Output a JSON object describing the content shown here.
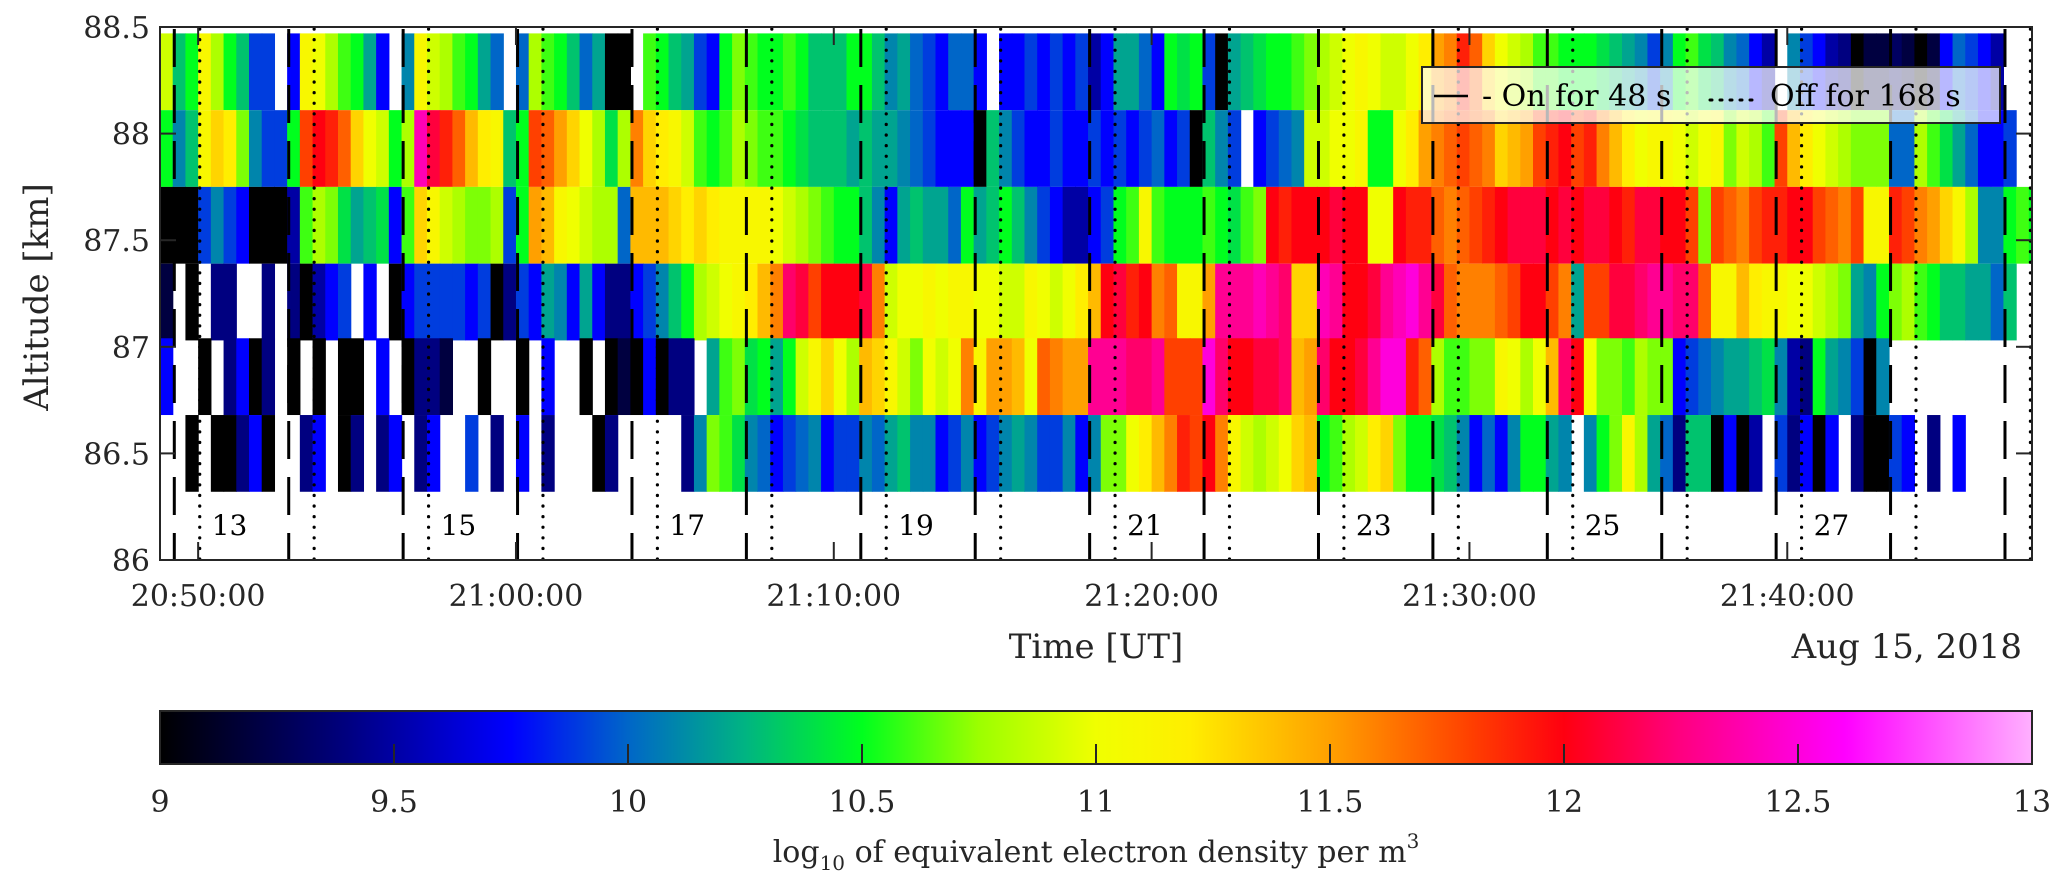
{
  "chart_data": {
    "type": "heatmap",
    "ylabel": "Altitude [km]",
    "xlabel": "Time [UT]",
    "date_label": "Aug 15, 2018",
    "ylim": [
      86,
      88.5
    ],
    "y_ticks": [
      86,
      86.5,
      87,
      87.5,
      88,
      88.5
    ],
    "y_tick_labels": [
      "86",
      "86.5",
      "87",
      "87.5",
      "88",
      "88.5"
    ],
    "x_range_minutes_after_2050": [
      -1.2,
      57.7
    ],
    "x_ticks_minutes_after_2050": [
      0,
      10,
      20,
      30,
      40,
      50
    ],
    "x_tick_labels": [
      "20:50:00",
      "21:00:00",
      "21:10:00",
      "21:20:00",
      "21:30:00",
      "21:40:00"
    ],
    "bin_seconds": 24,
    "data_start_minutes_after_2050": -1.2,
    "row_altitudes_km": [
      88.29,
      87.93,
      87.57,
      87.21,
      86.86,
      86.5
    ],
    "row_half_height_km": 0.18,
    "cycle_period_seconds": 216,
    "on_seconds": 48,
    "off_seconds": 168,
    "first_on_minutes_after_2050": -0.75,
    "cycle_count": 17,
    "cycle_labels": [
      "13",
      "15",
      "17",
      "19",
      "21",
      "23",
      "25",
      "27"
    ],
    "cycle_label_cycle_index": [
      0,
      2,
      4,
      6,
      8,
      10,
      12,
      14
    ],
    "legend": {
      "on_label": "- On for 48 s",
      "off_label": "Off for 168 s",
      "position": "top-right"
    },
    "colorbar": {
      "label_prefix": "log",
      "label_sub": "10",
      "label_main": " of equivalent electron density per m",
      "label_sup": "3",
      "range": [
        9,
        13
      ],
      "ticks": [
        9,
        9.5,
        10,
        10.5,
        11,
        11.5,
        12,
        12.5,
        13
      ],
      "tick_labels": [
        "9",
        "9.5",
        "10",
        "10.5",
        "11",
        "11.5",
        "12",
        "12.5",
        "13"
      ],
      "stops": [
        {
          "v": 9.0,
          "c": "#000000"
        },
        {
          "v": 9.4,
          "c": "#000080"
        },
        {
          "v": 9.75,
          "c": "#0000ff"
        },
        {
          "v": 10.0,
          "c": "#0066c8"
        },
        {
          "v": 10.25,
          "c": "#00b482"
        },
        {
          "v": 10.5,
          "c": "#00ff1e"
        },
        {
          "v": 10.75,
          "c": "#9cff00"
        },
        {
          "v": 11.0,
          "c": "#f0ff00"
        },
        {
          "v": 11.2,
          "c": "#ffee00"
        },
        {
          "v": 11.5,
          "c": "#ffa000"
        },
        {
          "v": 11.8,
          "c": "#ff4000"
        },
        {
          "v": 12.0,
          "c": "#ff0010"
        },
        {
          "v": 12.25,
          "c": "#ff0080"
        },
        {
          "v": 12.6,
          "c": "#ff00ff"
        },
        {
          "v": 13.0,
          "c": "#ffb0ff"
        }
      ]
    },
    "values": [
      [
        10.9,
        10.3,
        10.5,
        11.1,
        10.8,
        10.5,
        10.3,
        9.9,
        9.9,
        null,
        9.75,
        11.1,
        11.0,
        10.8,
        10.6,
        10.5,
        10.2,
        9.75,
        null,
        10.1,
        11.1,
        10.9,
        10.8,
        10.6,
        10.5,
        10.2,
        10.0,
        null,
        10.0,
        10.8,
        10.6,
        10.5,
        10.3,
        10.0,
        10.2,
        9.0,
        9.0,
        null,
        10.6,
        10.5,
        10.3,
        10.2,
        9.9,
        9.75,
        10.5,
        10.7,
        10.6,
        10.5,
        10.5,
        10.6,
        10.5,
        10.3,
        10.3,
        10.3,
        10.5,
        10.5,
        10.3,
        10.1,
        10.2,
        10.0,
        9.9,
        9.75,
        10.0,
        10.0,
        9.75,
        null,
        9.75,
        9.75,
        9.9,
        9.75,
        9.9,
        9.75,
        9.9,
        9.5,
        9.75,
        10.2,
        10.2,
        10.0,
        9.75,
        10.5,
        10.4,
        10.5,
        9.9,
        9.0,
        10.2,
        10.3,
        10.4,
        10.5,
        10.5,
        10.6,
        10.7,
        10.8,
        10.9,
        11.0,
        11.1,
        11.0,
        10.9,
        10.9,
        11.0,
        11.2,
        11.5,
        11.6,
        11.9,
        11.7,
        11.3,
        11.0,
        10.9,
        10.8,
        10.6,
        10.6,
        10.5,
        10.5,
        10.5,
        10.4,
        10.3,
        10.2,
        10.1,
        9.9,
        10.1,
        10.5,
        10.6,
        10.4,
        10.3,
        10.1,
        10.0,
        9.75,
        9.5,
        null,
        10.1,
        9.9,
        9.75,
        9.5,
        9.4,
        9.0,
        9.2,
        9.2,
        9.3,
        9.2,
        9.0,
        9.2,
        9.75,
        10.0,
        9.9,
        9.75,
        9.5
      ],
      [
        10.5,
        10.1,
        10.3,
        11.1,
        11.3,
        11.2,
        10.7,
        10.1,
        9.9,
        9.9,
        10.5,
        11.8,
        12.0,
        11.9,
        11.7,
        11.3,
        11.0,
        10.9,
        10.5,
        10.8,
        12.4,
        12.1,
        11.9,
        11.7,
        11.4,
        11.2,
        11.1,
        10.3,
        10.5,
        11.8,
        11.7,
        11.5,
        11.3,
        11.0,
        10.8,
        10.4,
        10.8,
        11.6,
        11.3,
        11.2,
        11.1,
        10.9,
        10.6,
        10.5,
        10.6,
        10.8,
        10.7,
        10.6,
        10.6,
        10.5,
        10.4,
        10.3,
        10.3,
        10.3,
        10.2,
        10.3,
        10.2,
        10.2,
        10.1,
        10.0,
        9.9,
        9.75,
        9.75,
        9.75,
        9.0,
        10.3,
        10.1,
        9.9,
        9.75,
        9.75,
        9.9,
        9.75,
        9.75,
        9.9,
        9.75,
        9.9,
        9.75,
        9.9,
        10.0,
        9.75,
        9.9,
        9.0,
        10.3,
        10.1,
        9.9,
        null,
        9.75,
        9.9,
        10.0,
        10.1,
        10.9,
        10.9,
        11.0,
        11.0,
        11.1,
        10.5,
        10.5,
        11.0,
        11.2,
        11.5,
        11.6,
        11.7,
        11.8,
        11.7,
        11.6,
        11.3,
        11.4,
        11.5,
        11.8,
        11.9,
        12.0,
        11.8,
        11.9,
        11.6,
        11.4,
        11.2,
        11.0,
        11.1,
        11.1,
        11.0,
        10.9,
        11.0,
        11.1,
        10.7,
        10.9,
        10.8,
        10.6,
        11.8,
        11.4,
        11.2,
        11.0,
        10.9,
        10.8,
        10.7,
        10.7,
        10.7,
        10.0,
        10.0,
        10.8,
        10.6,
        10.4,
        10.2,
        10.0,
        9.75,
        9.75,
        9.9,
        null,
        null,
        null,
        null,
        null,
        null,
        null
      ],
      [
        9.0,
        9.0,
        9.0,
        9.9,
        10.1,
        9.9,
        9.75,
        9.0,
        9.0,
        9.0,
        9.5,
        10.6,
        10.8,
        10.7,
        10.4,
        10.2,
        10.3,
        10.4,
        9.75,
        10.6,
        11.3,
        11.1,
        10.9,
        10.8,
        10.7,
        10.7,
        10.8,
        9.9,
        10.5,
        11.5,
        11.4,
        11.1,
        11.0,
        10.9,
        10.8,
        10.8,
        10.0,
        11.4,
        11.4,
        11.4,
        11.3,
        11.2,
        11.3,
        11.2,
        11.1,
        11.1,
        11.1,
        11.1,
        11.0,
        10.9,
        10.8,
        10.7,
        10.6,
        10.5,
        10.5,
        10.3,
        10.1,
        9.75,
        10.2,
        10.3,
        10.2,
        10.2,
        10.0,
        10.5,
        10.2,
        10.3,
        10.5,
        10.3,
        10.1,
        9.9,
        9.75,
        9.5,
        9.5,
        9.75,
        9.9,
        10.5,
        10.6,
        11.1,
        10.6,
        10.5,
        10.5,
        10.5,
        10.6,
        10.5,
        10.4,
        10.6,
        10.7,
        12.0,
        11.9,
        12.0,
        12.0,
        12.0,
        12.1,
        12.0,
        12.0,
        11.0,
        11.0,
        12.0,
        11.9,
        11.9,
        11.7,
        11.6,
        11.7,
        11.8,
        11.9,
        12.0,
        12.1,
        12.1,
        12.1,
        12.0,
        12.1,
        12.0,
        12.1,
        12.1,
        12.0,
        11.9,
        12.1,
        12.1,
        12.0,
        12.0,
        11.8,
        10.7,
        11.8,
        11.7,
        11.6,
        11.8,
        11.9,
        11.9,
        12.0,
        12.0,
        11.8,
        11.7,
        11.6,
        11.8,
        11.1,
        11.1,
        11.9,
        11.8,
        11.6,
        11.5,
        11.3,
        11.1,
        10.8,
        10.1,
        10.1,
        10.5,
        10.6,
        10.5,
        10.4,
        10.3,
        10.1,
        9.9,
        null
      ],
      [
        9.2,
        null,
        9.0,
        null,
        9.4,
        9.4,
        null,
        null,
        9.4,
        null,
        9.4,
        9.0,
        9.5,
        9.75,
        9.9,
        null,
        9.75,
        null,
        9.0,
        9.75,
        9.9,
        9.9,
        9.9,
        9.9,
        9.75,
        9.9,
        9.0,
        9.4,
        9.9,
        9.75,
        10.2,
        10.1,
        9.75,
        10.2,
        9.75,
        9.4,
        9.4,
        9.75,
        9.9,
        10.1,
        10.3,
        10.5,
        10.8,
        10.9,
        11.0,
        11.1,
        11.2,
        11.4,
        11.6,
        12.2,
        12.1,
        11.8,
        12.0,
        12.0,
        12.0,
        12.1,
        11.6,
        10.9,
        11.0,
        11.0,
        11.1,
        11.0,
        11.1,
        11.1,
        11.0,
        11.0,
        10.9,
        10.9,
        11.1,
        11.0,
        10.9,
        11.0,
        11.2,
        11.4,
        12.0,
        12.1,
        11.9,
        12.0,
        11.6,
        11.7,
        11.1,
        11.1,
        11.5,
        12.3,
        12.3,
        12.3,
        12.4,
        12.3,
        12.2,
        11.3,
        11.3,
        12.4,
        12.3,
        12.0,
        12.0,
        12.1,
        12.3,
        12.4,
        12.5,
        12.3,
        12.1,
        11.7,
        11.6,
        11.6,
        11.6,
        11.7,
        11.8,
        12.0,
        12.0,
        11.8,
        11.6,
        10.2,
        11.8,
        11.8,
        12.1,
        12.1,
        12.2,
        12.3,
        12.3,
        12.2,
        12.2,
        11.7,
        11.1,
        11.1,
        11.4,
        11.2,
        11.1,
        11.1,
        11.0,
        11.0,
        10.9,
        10.8,
        10.7,
        10.2,
        10.1,
        10.5,
        10.7,
        10.8,
        10.6,
        10.5,
        10.3,
        10.3,
        10.2,
        10.2,
        10.0,
        10.3,
        null,
        null,
        null,
        null,
        null,
        null,
        null
      ],
      [
        9.75,
        null,
        null,
        9.0,
        null,
        9.4,
        9.75,
        9.0,
        9.4,
        null,
        9.0,
        null,
        9.0,
        null,
        9.0,
        9.0,
        null,
        9.75,
        null,
        9.0,
        9.4,
        9.4,
        9.2,
        null,
        null,
        9.0,
        null,
        null,
        9.0,
        null,
        9.75,
        null,
        null,
        9.0,
        null,
        9.0,
        9.2,
        9.0,
        9.75,
        9.0,
        9.4,
        9.4,
        null,
        10.2,
        10.6,
        10.7,
        10.4,
        10.5,
        10.2,
        10.5,
        10.9,
        11.1,
        11.3,
        11.0,
        10.8,
        11.4,
        11.3,
        11.1,
        10.9,
        10.7,
        11.0,
        10.9,
        11.0,
        11.6,
        11.1,
        11.5,
        11.5,
        11.4,
        11.0,
        11.7,
        11.6,
        11.5,
        11.5,
        12.3,
        12.3,
        12.3,
        12.2,
        12.2,
        12.3,
        11.8,
        11.8,
        11.8,
        12.5,
        12.2,
        12.0,
        12.0,
        12.1,
        12.1,
        12.2,
        11.4,
        11.5,
        12.2,
        12.0,
        12.0,
        12.1,
        12.3,
        12.5,
        12.5,
        11.9,
        11.7,
        10.8,
        10.6,
        10.6,
        10.7,
        10.7,
        11.1,
        11.0,
        10.8,
        11.0,
        11.4,
        12.2,
        12.0,
        11.0,
        10.7,
        10.7,
        10.6,
        10.8,
        10.7,
        10.7,
        9.75,
        9.9,
        10.0,
        10.1,
        10.2,
        10.2,
        10.3,
        10.4,
        10.1,
        9.5,
        9.4,
        10.5,
        10.2,
        10.1,
        9.9,
        9.0,
        10.1,
        null,
        null,
        null,
        null,
        null,
        null,
        null,
        null,
        null,
        null,
        null,
        null,
        null,
        null,
        null,
        null,
        null
      ],
      [
        null,
        null,
        9.0,
        null,
        9.0,
        9.0,
        9.4,
        9.75,
        9.0,
        null,
        null,
        9.4,
        9.75,
        null,
        9.0,
        9.4,
        null,
        9.4,
        9.75,
        null,
        9.4,
        9.75,
        null,
        null,
        9.9,
        null,
        9.4,
        null,
        9.75,
        null,
        9.4,
        null,
        null,
        null,
        9.0,
        9.4,
        null,
        null,
        null,
        null,
        null,
        9.4,
        10.1,
        10.7,
        10.6,
        10.4,
        10.1,
        10.0,
        9.75,
        9.9,
        10.0,
        10.1,
        9.75,
        9.9,
        9.9,
        10.1,
        10.0,
        10.2,
        10.3,
        10.1,
        10.1,
        9.75,
        9.9,
        10.1,
        9.75,
        9.9,
        10.1,
        10.2,
        10.1,
        9.9,
        9.9,
        10.1,
        9.75,
        10.1,
        10.7,
        10.7,
        11.0,
        11.2,
        11.4,
        11.6,
        11.9,
        11.8,
        12.0,
        11.6,
        11.1,
        10.9,
        10.8,
        10.9,
        11.0,
        11.3,
        11.4,
        10.5,
        10.6,
        10.8,
        10.9,
        11.2,
        11.3,
        10.7,
        10.5,
        10.5,
        10.4,
        10.3,
        10.1,
        9.75,
        10.0,
        9.75,
        10.1,
        10.5,
        10.5,
        10.2,
        10.1,
        null,
        10.1,
        10.5,
        10.7,
        11.1,
        10.8,
        10.2,
        10.0,
        9.4,
        10.3,
        10.3,
        9.0,
        9.75,
        9.0,
        9.5,
        null,
        9.9,
        9.4,
        9.75,
        9.0,
        9.75,
        null,
        9.4,
        9.0,
        9.0,
        9.9,
        9.75,
        null,
        9.4,
        null,
        9.75,
        null,
        null
      ]
    ]
  }
}
